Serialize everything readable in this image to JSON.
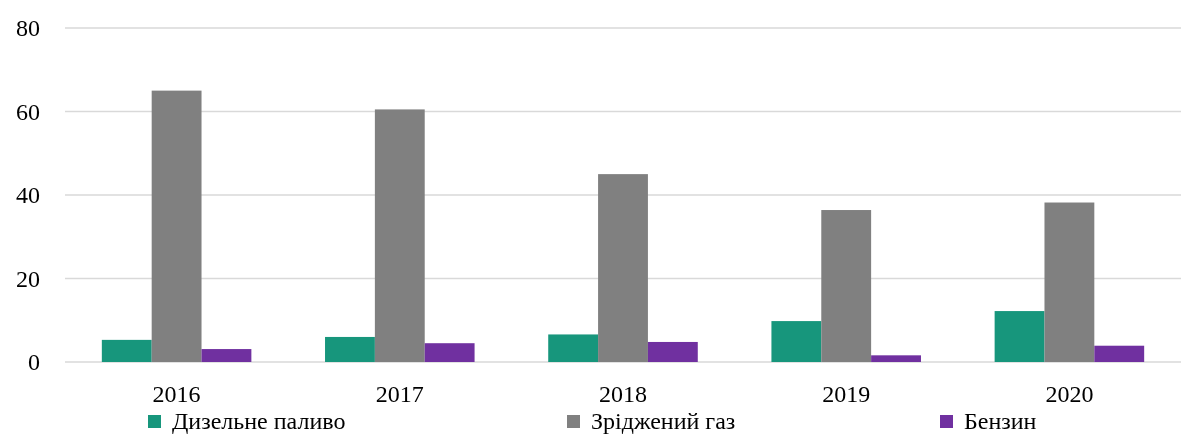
{
  "chart_data": {
    "type": "bar",
    "categories": [
      "2016",
      "2017",
      "2018",
      "2019",
      "2020"
    ],
    "series": [
      {
        "name": "Дизельне паливо",
        "color": "#17967c",
        "values": [
          5.3,
          6.0,
          6.6,
          9.8,
          12.2
        ]
      },
      {
        "name": "Зріджений газ",
        "color": "#808080",
        "values": [
          65,
          60.5,
          45.0,
          36.4,
          38.2
        ]
      },
      {
        "name": "Бензин",
        "color": "#7030a0",
        "values": [
          3.1,
          4.5,
          4.8,
          1.6,
          3.9
        ]
      }
    ],
    "ylim": [
      0,
      80
    ],
    "yticks": [
      0,
      20,
      40,
      60,
      80
    ],
    "grid": "y",
    "legend": "bottom"
  }
}
